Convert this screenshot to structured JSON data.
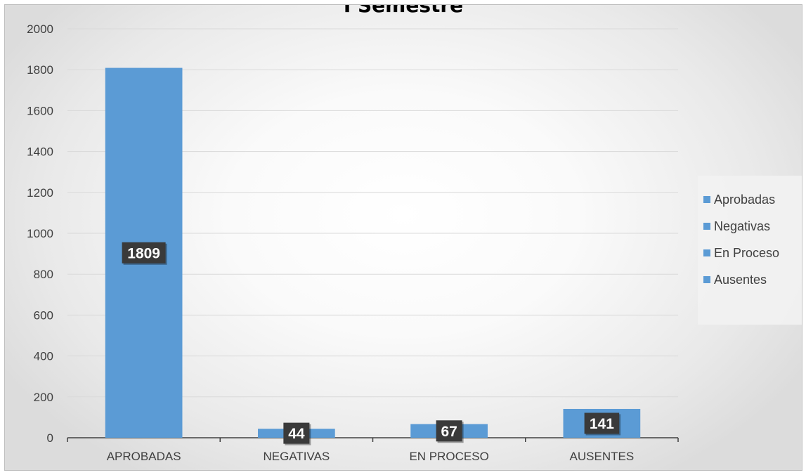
{
  "chart_data": {
    "type": "bar",
    "title": "I Semestre",
    "categories": [
      "APROBADAS",
      "NEGATIVAS",
      "EN PROCESO",
      "AUSENTES"
    ],
    "series": [
      {
        "name": "Aprobadas",
        "values": [
          1809,
          0,
          0,
          0
        ]
      },
      {
        "name": "Negativas",
        "values": [
          0,
          44,
          0,
          0
        ]
      },
      {
        "name": "En Proceso",
        "values": [
          0,
          0,
          67,
          0
        ]
      },
      {
        "name": "Ausentes",
        "values": [
          0,
          0,
          0,
          141
        ]
      }
    ],
    "values": [
      1809,
      44,
      67,
      141
    ],
    "data_labels": [
      "1809",
      "44",
      "67",
      "141"
    ],
    "ylim": [
      0,
      2000
    ],
    "yticks": [
      "0",
      "200",
      "400",
      "600",
      "800",
      "1000",
      "1200",
      "1400",
      "1600",
      "1800",
      "2000"
    ],
    "xlabel": "",
    "ylabel": "",
    "grid": true,
    "legend": [
      "Aprobadas",
      "Negativas",
      "En Proceso",
      "Ausentes"
    ],
    "legend_position": "right",
    "bar_color": "#5b9bd5",
    "label_box_color": "#3a3a3a"
  }
}
